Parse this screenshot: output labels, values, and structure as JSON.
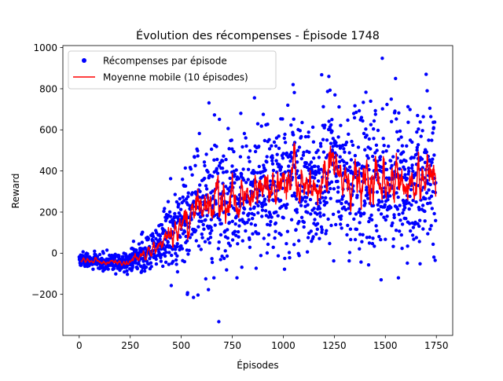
{
  "chart_data": {
    "type": "scatter",
    "title": "Évolution des récompenses - Épisode 1748",
    "xlabel": "Épisodes",
    "ylabel": "Reward",
    "xlim": [
      -80,
      1830
    ],
    "ylim": [
      -400,
      1010
    ],
    "xticks": [
      0,
      250,
      500,
      750,
      1000,
      1250,
      1500,
      1750
    ],
    "yticks": [
      -200,
      0,
      200,
      400,
      600,
      800,
      1000
    ],
    "x_tick_labels": [
      "0",
      "250",
      "500",
      "750",
      "1000",
      "1250",
      "1500",
      "1750"
    ],
    "y_tick_labels": [
      "−200",
      "0",
      "200",
      "400",
      "600",
      "800",
      "1000"
    ],
    "grid": false,
    "legend_position": "upper-left",
    "legend": [
      {
        "label": "Récompenses par épisode",
        "kind": "marker",
        "color": "#0000ff"
      },
      {
        "label": "Moyenne mobile (10 épisodes)",
        "kind": "line",
        "color": "#ff0000"
      }
    ],
    "n_episodes": 1748,
    "series": [
      {
        "name": "Récompenses par épisode",
        "type": "scatter",
        "color": "#0000ff",
        "trend_points": [
          [
            0,
            -35
          ],
          [
            100,
            -40
          ],
          [
            200,
            -45
          ],
          [
            250,
            -35
          ],
          [
            300,
            -10
          ],
          [
            350,
            20
          ],
          [
            400,
            60
          ],
          [
            450,
            100
          ],
          [
            500,
            150
          ],
          [
            550,
            190
          ],
          [
            600,
            220
          ],
          [
            650,
            240
          ],
          [
            700,
            260
          ],
          [
            800,
            290
          ],
          [
            900,
            310
          ],
          [
            1000,
            330
          ],
          [
            1100,
            340
          ],
          [
            1200,
            350
          ],
          [
            1300,
            355
          ],
          [
            1400,
            360
          ],
          [
            1500,
            360
          ],
          [
            1600,
            360
          ],
          [
            1748,
            365
          ]
        ],
        "spread_points": [
          [
            0,
            15
          ],
          [
            250,
            25
          ],
          [
            300,
            40
          ],
          [
            400,
            70
          ],
          [
            500,
            110
          ],
          [
            600,
            140
          ],
          [
            700,
            150
          ],
          [
            800,
            160
          ],
          [
            1000,
            170
          ],
          [
            1748,
            175
          ]
        ],
        "outliers": [
          [
            684,
            -333
          ],
          [
            560,
            -215
          ],
          [
            530,
            -200
          ],
          [
            620,
            -125
          ],
          [
            660,
            -120
          ],
          [
            1048,
            820
          ],
          [
            1188,
            868
          ],
          [
            1223,
            860
          ],
          [
            1485,
            948
          ],
          [
            1550,
            850
          ],
          [
            1700,
            870
          ],
          [
            1705,
            790
          ]
        ]
      },
      {
        "name": "Moyenne mobile (10 épisodes)",
        "type": "line",
        "color": "#ff0000"
      }
    ]
  }
}
